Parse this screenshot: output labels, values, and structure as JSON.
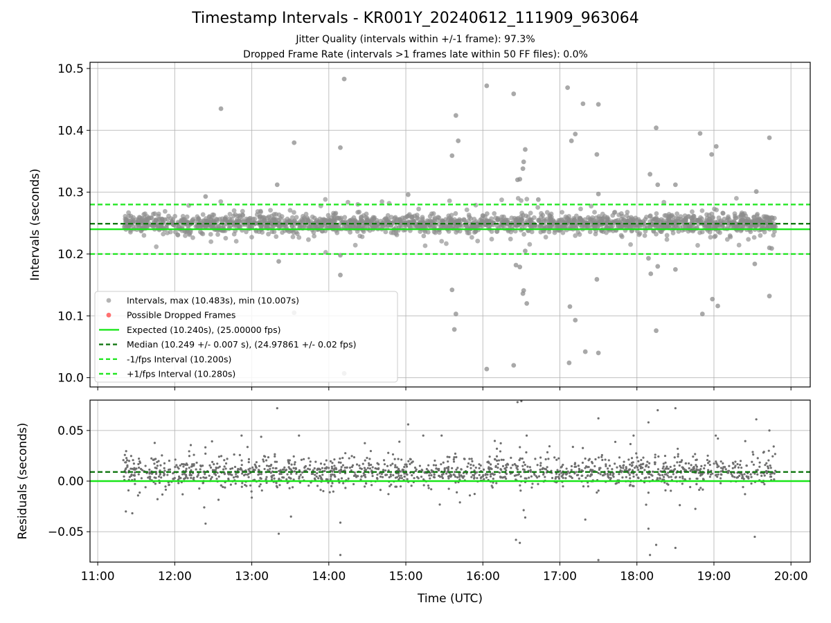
{
  "title": "Timestamp Intervals - KR001Y_20240612_111909_963064",
  "subtitle_jitter": "Jitter Quality (intervals within +/-1 frame): 97.3%",
  "subtitle_dropped": "Dropped Frame Rate (intervals >1 frames late within 50 FF files): 0.0%",
  "colors": {
    "points": "#8c8c8c",
    "residual_points": "#6e6e6e",
    "dropped": "#ff4d4d",
    "expected": "#19e619",
    "median": "#117711",
    "fps_bounds": "#22e622",
    "grid": "#b0b0b0"
  },
  "chart_data": [
    {
      "type": "scatter",
      "panel": "top",
      "ylabel": "Intervals (seconds)",
      "xlim": [
        10.9,
        20.25
      ],
      "ylim": [
        9.985,
        10.51
      ],
      "yticks": [
        10.0,
        10.1,
        10.2,
        10.3,
        10.4,
        10.5
      ],
      "ytick_labels": [
        "10.0",
        "10.1",
        "10.2",
        "10.3",
        "10.4",
        "10.5"
      ],
      "grid": true,
      "legend_position": "lower-left",
      "series": [
        {
          "name": "Intervals, max (10.483s), min (10.007s)",
          "kind": "points",
          "x_range": [
            11.33,
            19.8
          ],
          "center": 10.249,
          "spread": 0.007
        },
        {
          "name": "Possible Dropped Frames",
          "kind": "points",
          "values": []
        },
        {
          "name": "Expected (10.240s), (25.00000 fps)",
          "kind": "hline",
          "y": 10.24
        },
        {
          "name": "Median (10.249 +/- 0.007 s), (24.97861 +/- 0.02 fps)",
          "kind": "hline",
          "y": 10.249
        },
        {
          "name": "-1/fps Interval (10.200s)",
          "kind": "hline",
          "y": 10.2
        },
        {
          "name": "+1/fps Interval (10.280s)",
          "kind": "hline",
          "y": 10.28
        }
      ],
      "outliers": [
        [
          12.6,
          10.435
        ],
        [
          13.55,
          10.38
        ],
        [
          14.15,
          10.372
        ],
        [
          14.2,
          10.483
        ],
        [
          16.05,
          10.472
        ],
        [
          16.4,
          10.459
        ],
        [
          17.1,
          10.469
        ],
        [
          17.3,
          10.443
        ],
        [
          17.5,
          10.442
        ],
        [
          17.2,
          10.394
        ],
        [
          17.15,
          10.383
        ],
        [
          15.65,
          10.424
        ],
        [
          15.68,
          10.383
        ],
        [
          15.6,
          10.359
        ],
        [
          16.55,
          10.369
        ],
        [
          16.53,
          10.349
        ],
        [
          16.52,
          10.338
        ],
        [
          16.45,
          10.32
        ],
        [
          16.48,
          10.321
        ],
        [
          17.48,
          10.361
        ],
        [
          18.25,
          10.404
        ],
        [
          18.82,
          10.395
        ],
        [
          18.97,
          10.361
        ],
        [
          19.03,
          10.374
        ],
        [
          19.72,
          10.388
        ],
        [
          18.17,
          10.329
        ],
        [
          18.27,
          10.312
        ],
        [
          18.5,
          10.312
        ],
        [
          13.33,
          10.312
        ],
        [
          19.55,
          10.301
        ],
        [
          15.03,
          10.296
        ],
        [
          17.5,
          10.297
        ],
        [
          12.4,
          10.293
        ],
        [
          16.72,
          10.288
        ],
        [
          13.35,
          10.188
        ],
        [
          13.55,
          10.105
        ],
        [
          14.15,
          10.166
        ],
        [
          14.15,
          10.198
        ],
        [
          15.6,
          10.142
        ],
        [
          15.65,
          10.103
        ],
        [
          15.63,
          10.078
        ],
        [
          16.43,
          10.182
        ],
        [
          16.48,
          10.179
        ],
        [
          16.55,
          10.205
        ],
        [
          16.52,
          10.136
        ],
        [
          16.53,
          10.141
        ],
        [
          16.57,
          10.12
        ],
        [
          17.13,
          10.115
        ],
        [
          17.2,
          10.093
        ],
        [
          17.33,
          10.042
        ],
        [
          17.48,
          10.159
        ],
        [
          17.5,
          10.04
        ],
        [
          17.12,
          10.024
        ],
        [
          16.05,
          10.014
        ],
        [
          16.4,
          10.02
        ],
        [
          14.2,
          10.007
        ],
        [
          18.15,
          10.193
        ],
        [
          18.18,
          10.168
        ],
        [
          18.27,
          10.18
        ],
        [
          18.25,
          10.076
        ],
        [
          18.5,
          10.175
        ],
        [
          18.85,
          10.103
        ],
        [
          18.98,
          10.127
        ],
        [
          19.05,
          10.116
        ],
        [
          19.53,
          10.184
        ],
        [
          19.72,
          10.132
        ],
        [
          19.72,
          10.21
        ],
        [
          19.75,
          10.209
        ]
      ]
    },
    {
      "type": "scatter",
      "panel": "bottom",
      "ylabel": "Residuals (seconds)",
      "xlabel": "Time (UTC)",
      "xlim": [
        10.9,
        20.25
      ],
      "ylim": [
        -0.08,
        0.08
      ],
      "yticks": [
        -0.05,
        0.0,
        0.05
      ],
      "ytick_labels": [
        "−0.05",
        "0.00",
        "0.05"
      ],
      "xticks": [
        11,
        12,
        13,
        14,
        15,
        16,
        17,
        18,
        19,
        20
      ],
      "xtick_labels": [
        "11:00",
        "12:00",
        "13:00",
        "14:00",
        "15:00",
        "16:00",
        "17:00",
        "18:00",
        "19:00",
        "20:00"
      ],
      "grid": true,
      "hlines": [
        {
          "y": 0.0,
          "style": "solid"
        },
        {
          "y": 0.009,
          "style": "dashed"
        }
      ],
      "center": 0.009,
      "spread": 0.007,
      "outliers": [
        [
          13.33,
          0.072
        ],
        [
          18.5,
          0.072
        ],
        [
          16.45,
          0.078
        ],
        [
          16.5,
          0.079
        ],
        [
          18.27,
          0.07
        ],
        [
          17.5,
          0.062
        ],
        [
          19.55,
          0.061
        ],
        [
          18.15,
          0.058
        ],
        [
          15.03,
          0.056
        ],
        [
          19.72,
          0.05
        ],
        [
          13.35,
          -0.052
        ],
        [
          14.15,
          -0.073
        ],
        [
          14.15,
          -0.041
        ],
        [
          16.43,
          -0.058
        ],
        [
          16.48,
          -0.061
        ],
        [
          17.5,
          -0.078
        ],
        [
          18.15,
          -0.047
        ],
        [
          18.17,
          -0.073
        ],
        [
          18.25,
          -0.063
        ],
        [
          18.5,
          -0.066
        ],
        [
          19.53,
          -0.055
        ],
        [
          12.4,
          -0.042
        ],
        [
          17.33,
          -0.038
        ],
        [
          16.55,
          -0.036
        ]
      ]
    }
  ]
}
